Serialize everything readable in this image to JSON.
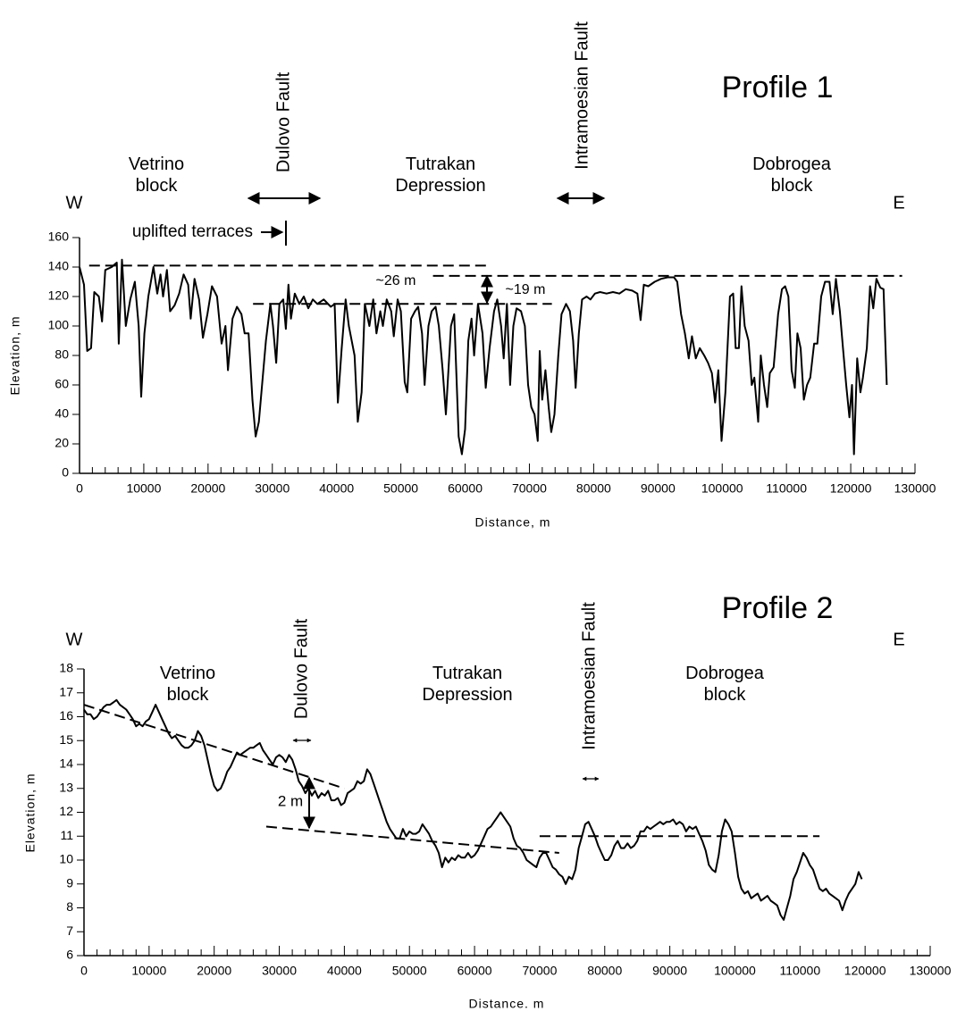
{
  "chart_data": [
    {
      "type": "line",
      "title": "Profile 1",
      "x_label": "Distance, m",
      "y_label": "Elevation, m",
      "color": "#000000",
      "xlim": [
        0,
        130000
      ],
      "xticks": [
        0,
        10000,
        20000,
        30000,
        40000,
        50000,
        60000,
        70000,
        80000,
        90000,
        100000,
        110000,
        120000,
        130000
      ],
      "ylim": [
        0,
        160
      ],
      "yticks": [
        0,
        20,
        40,
        60,
        80,
        100,
        120,
        140,
        160
      ],
      "x": [
        0,
        700,
        1200,
        1800,
        2300,
        3000,
        3500,
        4000,
        5000,
        5800,
        6100,
        6600,
        7200,
        7900,
        8600,
        9200,
        9600,
        10100,
        10700,
        11500,
        12100,
        12600,
        13000,
        13600,
        14100,
        14800,
        15500,
        16200,
        16900,
        17300,
        17900,
        18600,
        19200,
        19900,
        20600,
        21400,
        22100,
        22700,
        23100,
        23800,
        24500,
        25200,
        25700,
        26300,
        26900,
        27400,
        27900,
        28500,
        29000,
        29700,
        30100,
        30600,
        31100,
        31700,
        32100,
        32500,
        32900,
        33500,
        34200,
        34900,
        35600,
        36300,
        37000,
        38000,
        39100,
        39700,
        40200,
        40800,
        41400,
        41900,
        42800,
        43300,
        43900,
        44400,
        45100,
        45700,
        46200,
        46800,
        47200,
        47800,
        48500,
        48900,
        49500,
        50000,
        50600,
        51000,
        51600,
        52200,
        52700,
        53300,
        53700,
        54300,
        54800,
        55400,
        55900,
        56500,
        57000,
        57800,
        58300,
        59000,
        59500,
        60000,
        60500,
        61000,
        61400,
        62000,
        62700,
        63200,
        63800,
        64500,
        65000,
        65600,
        66000,
        66500,
        67000,
        67500,
        68000,
        68700,
        69300,
        69800,
        70300,
        70800,
        71300,
        71600,
        72000,
        72500,
        73000,
        73400,
        73900,
        74500,
        75000,
        75700,
        76300,
        76800,
        77200,
        77700,
        78200,
        78900,
        79500,
        80200,
        81000,
        82000,
        83000,
        84000,
        85000,
        86000,
        86800,
        87300,
        87800,
        88500,
        89500,
        90500,
        91500,
        92500,
        93000,
        93600,
        94200,
        94800,
        95300,
        95900,
        96500,
        97200,
        97800,
        98400,
        98900,
        99400,
        99900,
        100500,
        101200,
        101700,
        102100,
        102600,
        103000,
        103500,
        104100,
        104600,
        105000,
        105600,
        106000,
        106500,
        107000,
        107400,
        108000,
        108700,
        109300,
        109800,
        110300,
        110800,
        111300,
        111700,
        112200,
        112700,
        113200,
        113700,
        114300,
        114800,
        115400,
        116000,
        116700,
        117200,
        117700,
        118300,
        118800,
        119300,
        119800,
        120200,
        120500,
        121000,
        121500,
        121900,
        122500,
        123000,
        123500,
        124000,
        124600,
        125100,
        125600
      ],
      "values": [
        140,
        128,
        83,
        85,
        123,
        120,
        103,
        138,
        140,
        143,
        88,
        145,
        100,
        118,
        130,
        100,
        52,
        95,
        120,
        140,
        122,
        135,
        120,
        138,
        110,
        114,
        122,
        135,
        128,
        105,
        132,
        118,
        92,
        108,
        127,
        120,
        88,
        100,
        70,
        105,
        113,
        108,
        95,
        95,
        50,
        25,
        35,
        65,
        90,
        115,
        100,
        75,
        115,
        118,
        98,
        128,
        105,
        122,
        115,
        120,
        112,
        118,
        115,
        118,
        113,
        115,
        48,
        85,
        118,
        100,
        80,
        35,
        55,
        115,
        100,
        118,
        95,
        110,
        100,
        118,
        110,
        93,
        118,
        110,
        62,
        55,
        105,
        110,
        113,
        95,
        60,
        100,
        110,
        113,
        100,
        70,
        40,
        100,
        108,
        25,
        13,
        30,
        90,
        105,
        80,
        115,
        95,
        58,
        85,
        110,
        118,
        100,
        78,
        115,
        60,
        100,
        112,
        110,
        100,
        60,
        45,
        40,
        22,
        83,
        50,
        70,
        45,
        28,
        40,
        80,
        108,
        115,
        110,
        90,
        58,
        95,
        118,
        120,
        118,
        122,
        123,
        122,
        123,
        122,
        125,
        124,
        122,
        104,
        128,
        127,
        130,
        132,
        133,
        133,
        130,
        108,
        95,
        78,
        93,
        78,
        85,
        80,
        75,
        68,
        48,
        70,
        22,
        55,
        120,
        122,
        85,
        85,
        127,
        100,
        90,
        60,
        65,
        35,
        80,
        60,
        45,
        68,
        72,
        108,
        125,
        127,
        120,
        70,
        58,
        95,
        85,
        50,
        60,
        65,
        88,
        88,
        120,
        130,
        130,
        108,
        132,
        110,
        85,
        60,
        38,
        60,
        13,
        78,
        55,
        65,
        85,
        127,
        112,
        132,
        126,
        125,
        60
      ],
      "reference_lines": [
        {
          "x": [
            1500,
            64000
          ],
          "y": [
            141,
            141
          ]
        },
        {
          "x": [
            27000,
            73500
          ],
          "y": [
            115,
            115
          ]
        },
        {
          "x": [
            55000,
            128000
          ],
          "y": [
            134,
            134
          ]
        }
      ],
      "annotations": [
        "W",
        "E",
        "Vetrino block",
        "Dulovo Fault",
        "Tutrakan Depression",
        "Intramoesian Fault",
        "Dobrogea block",
        "uplifted terraces",
        "~26 m",
        "~19 m"
      ]
    },
    {
      "type": "line",
      "title": "Profile 2",
      "x_label": "Distance. m",
      "y_label": "Elevation, m",
      "color": "#000000",
      "xlim": [
        0,
        130000
      ],
      "xticks": [
        0,
        10000,
        20000,
        30000,
        40000,
        50000,
        60000,
        70000,
        80000,
        90000,
        100000,
        110000,
        120000,
        130000
      ],
      "ylim": [
        6,
        18
      ],
      "yticks": [
        6,
        7,
        8,
        9,
        10,
        11,
        12,
        13,
        14,
        15,
        16,
        17,
        18
      ],
      "x": [
        0,
        500,
        1000,
        1500,
        2000,
        2500,
        3000,
        3500,
        4000,
        4500,
        5000,
        5500,
        6000,
        6500,
        7000,
        7500,
        8000,
        8500,
        9000,
        9500,
        10000,
        10500,
        11000,
        11500,
        12000,
        12500,
        13000,
        13500,
        14000,
        14500,
        15000,
        15500,
        16000,
        16500,
        17000,
        17500,
        18000,
        18500,
        19000,
        19500,
        20000,
        20500,
        21000,
        21500,
        22000,
        22500,
        23000,
        23500,
        24000,
        24500,
        25000,
        25500,
        26000,
        26500,
        27000,
        27500,
        28000,
        28500,
        29000,
        29500,
        30000,
        30500,
        31000,
        31500,
        32000,
        32500,
        33000,
        33500,
        34000,
        34500,
        35000,
        35500,
        36000,
        36500,
        37000,
        37500,
        38000,
        38500,
        39000,
        39500,
        40000,
        40500,
        41000,
        41500,
        42000,
        42500,
        43000,
        43500,
        44000,
        44500,
        45000,
        45500,
        46000,
        46500,
        47000,
        47500,
        48000,
        48500,
        49000,
        49500,
        50000,
        50500,
        51000,
        51500,
        52000,
        52500,
        53000,
        53500,
        54000,
        54500,
        55000,
        55500,
        56000,
        56500,
        57000,
        57500,
        58000,
        58500,
        59000,
        59500,
        60000,
        60500,
        61000,
        61500,
        62000,
        62500,
        63000,
        63500,
        64000,
        64500,
        65000,
        65500,
        66000,
        66500,
        67000,
        67500,
        68000,
        68500,
        69000,
        69500,
        70000,
        70500,
        71000,
        71500,
        72000,
        72500,
        73000,
        73500,
        74000,
        74500,
        75000,
        75500,
        76000,
        76500,
        77000,
        77500,
        78000,
        78500,
        79000,
        79500,
        80000,
        80500,
        81000,
        81500,
        82000,
        82500,
        83000,
        83500,
        84000,
        84500,
        85000,
        85500,
        86000,
        86500,
        87000,
        87500,
        88000,
        88500,
        89000,
        89500,
        90000,
        90500,
        91000,
        91500,
        92000,
        92500,
        93000,
        93500,
        94000,
        94500,
        95000,
        95500,
        96000,
        96500,
        97000,
        97500,
        98000,
        98500,
        99000,
        99500,
        100000,
        100500,
        101000,
        101500,
        102000,
        102500,
        103000,
        103500,
        104000,
        104500,
        105000,
        105500,
        106000,
        106500,
        107000,
        107500,
        108000,
        108500,
        109000,
        109500,
        110000,
        110500,
        111000,
        111500,
        112000,
        112500,
        113000,
        113500,
        114000,
        114500,
        115000,
        115500,
        116000,
        116500,
        117000,
        117500,
        118000,
        118500,
        119000,
        119500
      ],
      "values": [
        16.3,
        16.1,
        16.1,
        15.9,
        16.0,
        16.2,
        16.4,
        16.5,
        16.5,
        16.6,
        16.7,
        16.5,
        16.4,
        16.3,
        16.1,
        15.9,
        15.6,
        15.7,
        15.6,
        15.8,
        15.9,
        16.2,
        16.5,
        16.2,
        15.9,
        15.6,
        15.3,
        15.1,
        15.2,
        15.0,
        14.8,
        14.7,
        14.7,
        14.8,
        15.0,
        15.4,
        15.2,
        14.8,
        14.2,
        13.6,
        13.1,
        12.9,
        13.0,
        13.3,
        13.7,
        13.9,
        14.2,
        14.5,
        14.4,
        14.5,
        14.6,
        14.7,
        14.7,
        14.8,
        14.9,
        14.6,
        14.4,
        14.2,
        14.0,
        14.3,
        14.4,
        14.3,
        14.1,
        14.4,
        14.2,
        13.8,
        13.3,
        13.1,
        12.8,
        13.0,
        12.7,
        12.9,
        12.6,
        12.8,
        12.7,
        12.9,
        12.5,
        12.5,
        12.6,
        12.3,
        12.4,
        12.8,
        12.9,
        13.0,
        13.3,
        13.2,
        13.3,
        13.8,
        13.6,
        13.2,
        12.8,
        12.4,
        12.0,
        11.6,
        11.3,
        11.1,
        10.9,
        10.9,
        11.3,
        11.0,
        11.2,
        11.1,
        11.1,
        11.2,
        11.5,
        11.3,
        11.1,
        10.8,
        10.6,
        10.3,
        9.7,
        10.1,
        9.9,
        10.1,
        10.0,
        10.2,
        10.1,
        10.1,
        10.3,
        10.1,
        10.2,
        10.4,
        10.7,
        11.0,
        11.3,
        11.4,
        11.6,
        11.8,
        12.0,
        11.8,
        11.6,
        11.4,
        10.9,
        10.6,
        10.5,
        10.3,
        10.0,
        9.9,
        9.8,
        9.7,
        10.1,
        10.3,
        10.3,
        10.0,
        9.7,
        9.6,
        9.4,
        9.3,
        9.0,
        9.3,
        9.2,
        9.6,
        10.5,
        11.0,
        11.5,
        11.6,
        11.3,
        11.0,
        10.6,
        10.3,
        10.0,
        10.0,
        10.2,
        10.6,
        10.8,
        10.5,
        10.5,
        10.7,
        10.5,
        10.6,
        10.8,
        11.2,
        11.2,
        11.4,
        11.3,
        11.4,
        11.5,
        11.6,
        11.5,
        11.6,
        11.6,
        11.7,
        11.5,
        11.6,
        11.5,
        11.2,
        11.4,
        11.3,
        11.4,
        11.1,
        10.8,
        10.4,
        9.8,
        9.6,
        9.5,
        10.2,
        11.2,
        11.7,
        11.5,
        11.2,
        10.3,
        9.3,
        8.8,
        8.6,
        8.7,
        8.4,
        8.5,
        8.6,
        8.3,
        8.4,
        8.5,
        8.3,
        8.2,
        8.1,
        7.7,
        7.5,
        8.0,
        8.5,
        9.2,
        9.5,
        9.9,
        10.3,
        10.1,
        9.8,
        9.6,
        9.2,
        8.8,
        8.7,
        8.8,
        8.6,
        8.5,
        8.4,
        8.3,
        7.9,
        8.3,
        8.6,
        8.8,
        9.0,
        9.5,
        9.2
      ],
      "reference_lines": [
        {
          "x": [
            0,
            40000
          ],
          "y": [
            16.5,
            13.0
          ]
        },
        {
          "x": [
            28000,
            73000
          ],
          "y": [
            11.4,
            10.3
          ]
        },
        {
          "x": [
            70000,
            113000
          ],
          "y": [
            11.0,
            11.0
          ]
        }
      ],
      "annotations": [
        "W",
        "E",
        "Vetrino block",
        "Dulovo Fault",
        "Tutrakan Depression",
        "Intramoesian Fault",
        "Dobrogea block",
        "2 m"
      ]
    }
  ]
}
